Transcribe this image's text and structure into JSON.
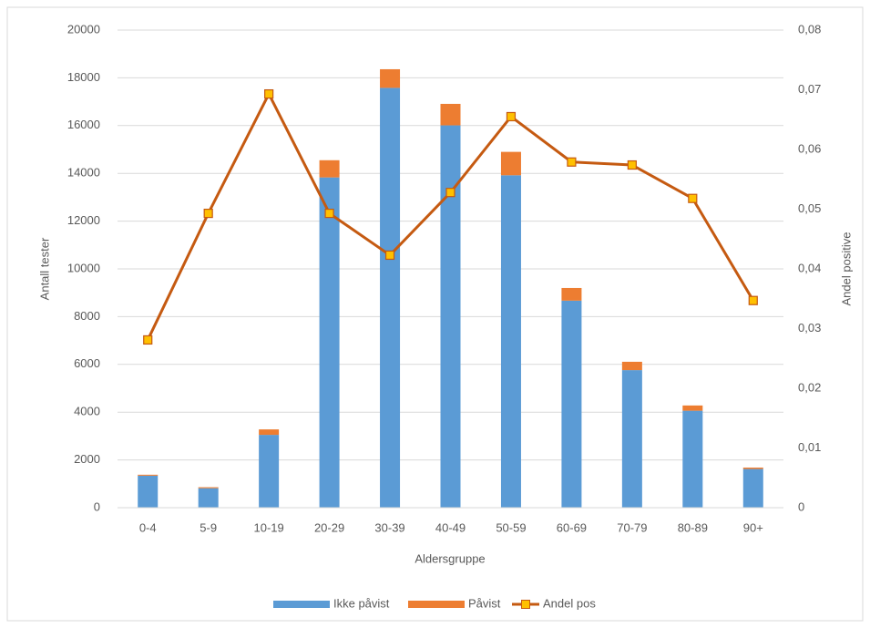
{
  "chart_data": {
    "type": "bar",
    "stacked": true,
    "categories": [
      "0-4",
      "5-9",
      "10-19",
      "20-29",
      "30-39",
      "40-49",
      "50-59",
      "60-69",
      "70-79",
      "80-89",
      "90+"
    ],
    "series": [
      {
        "name": "Ikke påvist",
        "color": "#5b9bd5",
        "values": [
          1340,
          815,
          3050,
          13830,
          17580,
          16010,
          13920,
          8670,
          5760,
          4060,
          1620
        ]
      },
      {
        "name": "Påvist",
        "color": "#ed7d31",
        "values": [
          40,
          42,
          228,
          720,
          780,
          900,
          980,
          530,
          350,
          220,
          60
        ]
      },
      {
        "name": "Andel pos",
        "color": "#c55a11",
        "marker_color": "#ffc000",
        "type": "line",
        "axis": "y2",
        "values": [
          0.0281,
          0.0493,
          0.0693,
          0.0493,
          0.0423,
          0.0528,
          0.0655,
          0.0579,
          0.0574,
          0.0518,
          0.0347
        ]
      }
    ],
    "xlabel": "Aldersgruppe",
    "ylabel": "Antall tester",
    "y2label": "Andel positive",
    "ylim": [
      0,
      20000
    ],
    "yticks": [
      0,
      2000,
      4000,
      6000,
      8000,
      10000,
      12000,
      14000,
      16000,
      18000,
      20000
    ],
    "y2lim": [
      0,
      0.08
    ],
    "y2ticks": [
      0,
      {
        "value": 0.01,
        "label": "0,01"
      },
      {
        "value": 0.02,
        "label": "0,02"
      },
      {
        "value": 0.03,
        "label": "0,03"
      },
      {
        "value": 0.04,
        "label": "0,04"
      },
      {
        "value": 0.05,
        "label": "0,05"
      },
      {
        "value": 0.06,
        "label": "0,06"
      },
      {
        "value": 0.07,
        "label": "0,07"
      },
      {
        "value": 0.08,
        "label": "0,08"
      }
    ],
    "grid": true,
    "legend": "bottom"
  }
}
